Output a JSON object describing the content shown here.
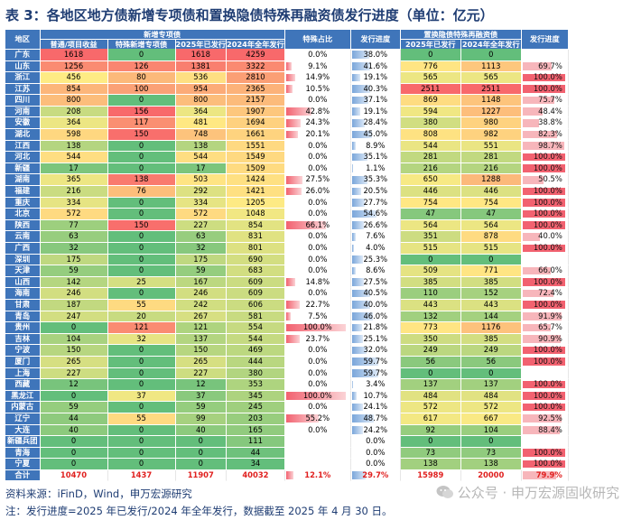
{
  "title": "表 3：各地区地方债新增专项债和置换隐债特殊再融资债发行进度（单位：亿元）",
  "headers": {
    "region": "地区",
    "group_new": "新增专项债",
    "group_refi": "置换隐债特殊再融资债",
    "cols": [
      "普通/项目收益",
      "特殊新增专项债",
      "2025年已发行",
      "2024年全年发行",
      "特殊占比",
      "发行进度",
      "2025年已发行",
      "2024年全年发行",
      "发行进度"
    ]
  },
  "rows": [
    [
      "广东",
      "1618",
      "0",
      "1618",
      "4259",
      "0.0%",
      "38.0%",
      "0",
      "0",
      ""
    ],
    [
      "山东",
      "1256",
      "126",
      "1381",
      "3322",
      "9.1%",
      "41.6%",
      "776",
      "1113",
      "69.7%"
    ],
    [
      "浙江",
      "456",
      "80",
      "536",
      "2810",
      "14.9%",
      "19.1%",
      "565",
      "565",
      "100.0%"
    ],
    [
      "江苏",
      "854",
      "100",
      "954",
      "2365",
      "10.5%",
      "40.3%",
      "2511",
      "2511",
      "100.0%"
    ],
    [
      "四川",
      "800",
      "0",
      "800",
      "2157",
      "0.0%",
      "37.1%",
      "869",
      "1148",
      "75.7%"
    ],
    [
      "河南",
      "208",
      "156",
      "364",
      "1907",
      "42.8%",
      "19.1%",
      "594",
      "1227",
      "48.4%"
    ],
    [
      "安徽",
      "364",
      "117",
      "481",
      "1694",
      "24.3%",
      "28.4%",
      "380",
      "980",
      "38.8%"
    ],
    [
      "湖北",
      "598",
      "150",
      "748",
      "1661",
      "20.1%",
      "45.0%",
      "808",
      "982",
      "82.3%"
    ],
    [
      "江西",
      "138",
      "0",
      "138",
      "1551",
      "0.0%",
      "8.9%",
      "544",
      "551",
      "98.7%"
    ],
    [
      "河北",
      "544",
      "0",
      "544",
      "1549",
      "0.0%",
      "35.1%",
      "281",
      "281",
      "100.0%"
    ],
    [
      "新疆",
      "17",
      "0",
      "17",
      "1509",
      "0.0%",
      "1.1%",
      "216",
      "216",
      "100.0%"
    ],
    [
      "湖南",
      "365",
      "138",
      "503",
      "1424",
      "27.5%",
      "35.3%",
      "650",
      "1288",
      "50.5%"
    ],
    [
      "福建",
      "216",
      "76",
      "292",
      "1421",
      "26.0%",
      "20.5%",
      "446",
      "446",
      "100.0%"
    ],
    [
      "重庆",
      "334",
      "0",
      "334",
      "1205",
      "0.0%",
      "27.7%",
      "754",
      "754",
      "100.0%"
    ],
    [
      "北京",
      "572",
      "0",
      "572",
      "1048",
      "0.0%",
      "54.6%",
      "47",
      "47",
      "100.0%"
    ],
    [
      "陕西",
      "77",
      "150",
      "227",
      "854",
      "66.1%",
      "26.6%",
      "564",
      "564",
      "100.0%"
    ],
    [
      "云南",
      "63",
      "0",
      "63",
      "831",
      "0.0%",
      "7.6%",
      "351",
      "878",
      "40.0%"
    ],
    [
      "广西",
      "32",
      "0",
      "32",
      "801",
      "0.0%",
      "4.0%",
      "515",
      "515",
      "100.0%"
    ],
    [
      "深圳",
      "175",
      "0",
      "175",
      "690",
      "0.0%",
      "25.3%",
      "0",
      "0",
      ""
    ],
    [
      "天津",
      "59",
      "0",
      "59",
      "683",
      "0.0%",
      "8.6%",
      "509",
      "771",
      "66.0%"
    ],
    [
      "山西",
      "142",
      "25",
      "167",
      "609",
      "14.8%",
      "27.5%",
      "385",
      "385",
      "100.0%"
    ],
    [
      "海南",
      "246",
      "0",
      "246",
      "609",
      "0.0%",
      "40.5%",
      "110",
      "152",
      "72.4%"
    ],
    [
      "甘肃",
      "187",
      "55",
      "242",
      "606",
      "22.7%",
      "40.0%",
      "443",
      "443",
      "100.0%"
    ],
    [
      "青岛",
      "247",
      "20",
      "267",
      "581",
      "7.5%",
      "46.0%",
      "132",
      "144",
      "91.9%"
    ],
    [
      "贵州",
      "0",
      "121",
      "121",
      "554",
      "100.0%",
      "21.8%",
      "773",
      "1176",
      "65.7%"
    ],
    [
      "吉林",
      "104",
      "32",
      "137",
      "544",
      "23.7%",
      "25.1%",
      "350",
      "385",
      "90.9%"
    ],
    [
      "宁波",
      "150",
      "0",
      "150",
      "469",
      "0.0%",
      "32.0%",
      "249",
      "249",
      "100.0%"
    ],
    [
      "厦门",
      "265",
      "0",
      "265",
      "444",
      "0.0%",
      "59.7%",
      "56",
      "56",
      "100.0%"
    ],
    [
      "上海",
      "227",
      "0",
      "227",
      "380",
      "0.0%",
      "59.7%",
      "0",
      "0",
      ""
    ],
    [
      "西藏",
      "12",
      "0",
      "12",
      "353",
      "0.0%",
      "3.4%",
      "137",
      "137",
      "100.0%"
    ],
    [
      "黑龙江",
      "0",
      "37",
      "37",
      "345",
      "100.0%",
      "10.7%",
      "484",
      "484",
      "100.0%"
    ],
    [
      "内蒙古",
      "59",
      "0",
      "59",
      "245",
      "0.0%",
      "24.1%",
      "572",
      "572",
      "100.0%"
    ],
    [
      "辽宁",
      "44",
      "55",
      "99",
      "203",
      "55.2%",
      "48.7%",
      "617",
      "667",
      "92.5%"
    ],
    [
      "大连",
      "40",
      "0",
      "40",
      "165",
      "0.0%",
      "24.2%",
      "92",
      "104",
      "88.4%"
    ],
    [
      "新疆兵团",
      "0",
      "0",
      "0",
      "111",
      "",
      "0.0%",
      "0",
      "0",
      ""
    ],
    [
      "青海",
      "0",
      "0",
      "0",
      "44",
      "",
      "0.0%",
      "73",
      "73",
      "100.0%"
    ],
    [
      "宁夏",
      "0",
      "0",
      "0",
      "34",
      "",
      "0.0%",
      "138",
      "138",
      "100.0%"
    ]
  ],
  "total": [
    "合计",
    "10470",
    "1437",
    "11907",
    "40032",
    "12.1%",
    "29.7%",
    "15989",
    "20000",
    "79.9%"
  ],
  "source": "资料来源：iFinD，Wind，申万宏源研究",
  "note": "注：发行进度=2025 年已发行/2024 年全年发行，数据截至 2025 年 4 月 30 日。",
  "watermark": "公众号 · 申万宏源固收研究",
  "colors": {
    "header": "#3f75ba",
    "title": "#1f3d73",
    "total": "#e0201f"
  }
}
